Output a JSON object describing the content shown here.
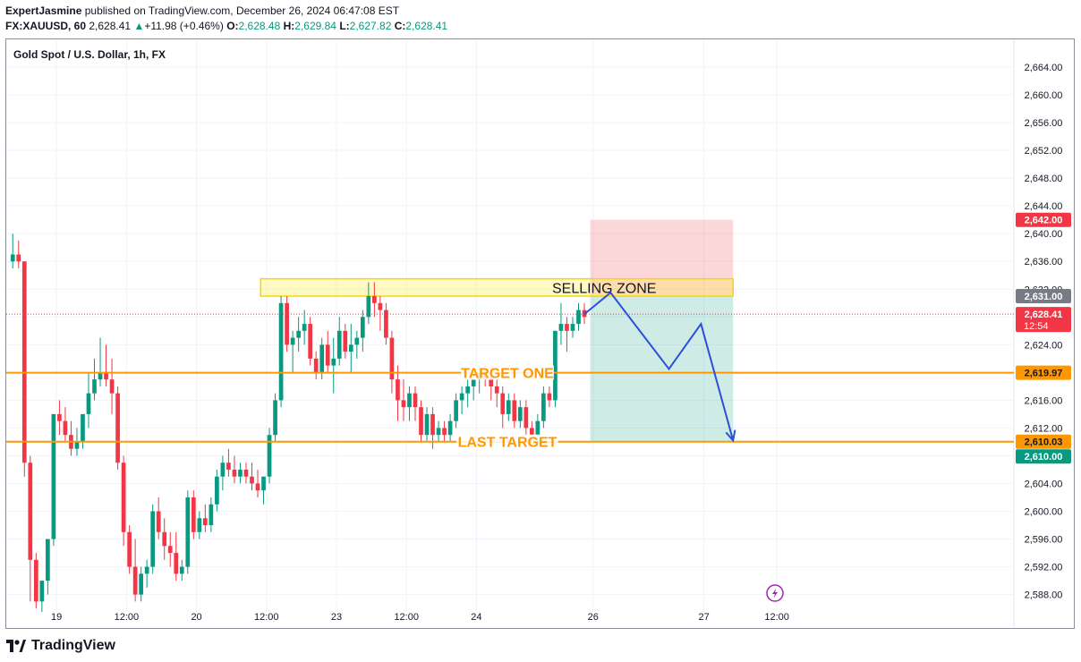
{
  "header": {
    "author": "ExpertJasmine",
    "published_text": "published on TradingView.com, December 26, 2024 06:47:08 EST",
    "symbol": "FX:XAUUSD, 60",
    "last": "2,628.41",
    "change": "+11.98 (+0.46%)",
    "open_label": "O:",
    "open": "2,628.48",
    "high_label": "H:",
    "high": "2,629.84",
    "low_label": "L:",
    "low": "2,627.82",
    "close_label": "C:",
    "close": "2,628.41"
  },
  "footer": {
    "brand": "TradingView"
  },
  "colors": {
    "up": "#089981",
    "down": "#f23645",
    "orange": "#ff9800",
    "projection": "#2b4fd6"
  },
  "chart_data": {
    "type": "candlestick",
    "title": "Gold Spot / U.S. Dollar, 1h, FX",
    "ylim": [
      2585.5,
      2668
    ],
    "yticks": [
      2588,
      2592,
      2596,
      2600,
      2604,
      2608,
      2612,
      2616,
      2620,
      2624,
      2628,
      2632,
      2636,
      2640,
      2644,
      2648,
      2652,
      2656,
      2660,
      2664
    ],
    "ytick_labels": [
      "2,588.00",
      "2,592.00",
      "2,596.00",
      "2,600.00",
      "2,604.00",
      "2,608.00",
      "2,612.00",
      "2,616.00",
      "2,620.00",
      "2,624.00",
      "2,628.00",
      "2,632.00",
      "2,636.00",
      "2,640.00",
      "2,644.00",
      "2,648.00",
      "2,652.00",
      "2,656.00",
      "2,660.00",
      "2,664.00"
    ],
    "xlim": [
      0,
      168
    ],
    "xticks": [
      {
        "x": 8,
        "label": "19"
      },
      {
        "x": 20,
        "label": "12:00"
      },
      {
        "x": 32,
        "label": "20"
      },
      {
        "x": 44,
        "label": "12:00"
      },
      {
        "x": 56,
        "label": "23"
      },
      {
        "x": 68,
        "label": "12:00"
      },
      {
        "x": 80,
        "label": "24"
      },
      {
        "x": 100,
        "label": "26"
      },
      {
        "x": 119,
        "label": "27"
      },
      {
        "x": 131.5,
        "label": "12:00"
      }
    ],
    "candles": [
      [
        2636,
        2640,
        2635,
        2637
      ],
      [
        2637,
        2639,
        2635,
        2636
      ],
      [
        2636,
        2636,
        2605,
        2607
      ],
      [
        2607,
        2608,
        2587,
        2593
      ],
      [
        2593,
        2594,
        2586,
        2587
      ],
      [
        2587,
        2590,
        2585.5,
        2590
      ],
      [
        2590,
        2596,
        2588,
        2596
      ],
      [
        2596,
        2614,
        2595,
        2614
      ],
      [
        2614,
        2616,
        2611,
        2613
      ],
      [
        2613,
        2615,
        2610,
        2611
      ],
      [
        2611,
        2613,
        2608,
        2609
      ],
      [
        2609,
        2612,
        2608,
        2610
      ],
      [
        2610,
        2614,
        2609,
        2614
      ],
      [
        2614,
        2620,
        2612,
        2617
      ],
      [
        2617,
        2622,
        2616,
        2619
      ],
      [
        2619,
        2625,
        2618,
        2620
      ],
      [
        2620,
        2624,
        2618,
        2619
      ],
      [
        2619,
        2622,
        2614,
        2617
      ],
      [
        2617,
        2618,
        2606,
        2607
      ],
      [
        2607,
        2608,
        2595,
        2597
      ],
      [
        2597,
        2598,
        2591,
        2592
      ],
      [
        2592,
        2596,
        2587,
        2588
      ],
      [
        2588,
        2592,
        2587,
        2591
      ],
      [
        2591,
        2593,
        2589,
        2592
      ],
      [
        2592,
        2601,
        2591,
        2600
      ],
      [
        2600,
        2602,
        2596,
        2597
      ],
      [
        2597,
        2599,
        2593,
        2595
      ],
      [
        2595,
        2597,
        2592,
        2594
      ],
      [
        2594,
        2597,
        2590,
        2591
      ],
      [
        2591,
        2593,
        2590,
        2592
      ],
      [
        2592,
        2603,
        2591,
        2602
      ],
      [
        2602,
        2603,
        2596,
        2597
      ],
      [
        2597,
        2600,
        2596,
        2599
      ],
      [
        2599,
        2601,
        2597,
        2598
      ],
      [
        2598,
        2602,
        2597,
        2601
      ],
      [
        2601,
        2606,
        2600,
        2605
      ],
      [
        2605,
        2608,
        2603,
        2607
      ],
      [
        2607,
        2609,
        2605,
        2606
      ],
      [
        2606,
        2608,
        2604,
        2605
      ],
      [
        2605,
        2607,
        2604,
        2606
      ],
      [
        2606,
        2607,
        2604,
        2605
      ],
      [
        2605,
        2607,
        2603,
        2604
      ],
      [
        2604,
        2606,
        2602,
        2603
      ],
      [
        2603,
        2605,
        2601,
        2605
      ],
      [
        2605,
        2612,
        2604,
        2611
      ],
      [
        2611,
        2617,
        2610,
        2616
      ],
      [
        2616,
        2631,
        2615,
        2630
      ],
      [
        2630,
        2631,
        2623,
        2624
      ],
      [
        2624,
        2626,
        2620,
        2625
      ],
      [
        2625,
        2628,
        2623,
        2626
      ],
      [
        2626,
        2629,
        2624,
        2627
      ],
      [
        2627,
        2628,
        2621,
        2622
      ],
      [
        2622,
        2623,
        2619,
        2620
      ],
      [
        2620,
        2625,
        2619,
        2624
      ],
      [
        2624,
        2626,
        2620,
        2621
      ],
      [
        2621,
        2625,
        2617,
        2622
      ],
      [
        2622,
        2628,
        2621,
        2626
      ],
      [
        2626,
        2627,
        2622,
        2623
      ],
      [
        2623,
        2627,
        2620,
        2624
      ],
      [
        2624,
        2626,
        2622,
        2625
      ],
      [
        2625,
        2629,
        2623,
        2628
      ],
      [
        2628,
        2633,
        2627,
        2631
      ],
      [
        2631,
        2633,
        2628,
        2630
      ],
      [
        2630,
        2631,
        2626,
        2629
      ],
      [
        2629,
        2630,
        2624,
        2625
      ],
      [
        2625,
        2626,
        2617,
        2619
      ],
      [
        2619,
        2621,
        2613,
        2616
      ],
      [
        2616,
        2619,
        2613,
        2615
      ],
      [
        2615,
        2618,
        2613,
        2617
      ],
      [
        2617,
        2618,
        2613,
        2615
      ],
      [
        2615,
        2616,
        2610,
        2611
      ],
      [
        2611,
        2615,
        2610,
        2614
      ],
      [
        2614,
        2615,
        2609,
        2611
      ],
      [
        2611,
        2613,
        2610,
        2612
      ],
      [
        2612,
        2613,
        2610,
        2611
      ],
      [
        2611,
        2614,
        2610,
        2613
      ],
      [
        2613,
        2617,
        2612,
        2616
      ],
      [
        2616,
        2618,
        2614,
        2617
      ],
      [
        2617,
        2619,
        2615,
        2618
      ],
      [
        2618,
        2620,
        2616,
        2619
      ],
      [
        2619,
        2621,
        2617,
        2620
      ],
      [
        2620,
        2621,
        2618,
        2619
      ],
      [
        2619,
        2621,
        2616,
        2618
      ],
      [
        2618,
        2619,
        2615,
        2617
      ],
      [
        2617,
        2618,
        2612,
        2614
      ],
      [
        2614,
        2617,
        2613,
        2616
      ],
      [
        2616,
        2617,
        2612,
        2613
      ],
      [
        2613,
        2616,
        2612,
        2615
      ],
      [
        2615,
        2616,
        2611,
        2612
      ],
      [
        2612,
        2613,
        2610,
        2611
      ],
      [
        2611,
        2614,
        2610,
        2613
      ],
      [
        2613,
        2618,
        2612,
        2617
      ],
      [
        2617,
        2618,
        2615,
        2616
      ],
      [
        2616,
        2626,
        2615,
        2626
      ],
      [
        2626,
        2630,
        2624,
        2627
      ],
      [
        2627,
        2628,
        2623,
        2626
      ],
      [
        2626,
        2628,
        2625,
        2627
      ],
      [
        2627,
        2630,
        2626,
        2629
      ],
      [
        2629,
        2630,
        2627,
        2628
      ]
    ],
    "current_price": 2628.41,
    "selling_zone": {
      "label": "SELLING ZONE",
      "x": [
        43,
        124
      ],
      "y": [
        2631,
        2633.5
      ]
    },
    "risk_box": {
      "x": [
        99.5,
        124
      ],
      "y": [
        2631,
        2642
      ]
    },
    "reward_box": {
      "x": [
        99.5,
        124
      ],
      "y": [
        2610.03,
        2631
      ]
    },
    "levels": [
      {
        "label": "TARGET ONE",
        "y": 2619.97
      },
      {
        "label": "LAST TARGET",
        "y": 2610.03
      }
    ],
    "projection_path": [
      {
        "x": 98.5,
        "y": 2628.41
      },
      {
        "x": 103,
        "y": 2631.5
      },
      {
        "x": 113,
        "y": 2620.5
      },
      {
        "x": 118.5,
        "y": 2627
      },
      {
        "x": 124,
        "y": 2610.2
      }
    ],
    "price_labels": [
      {
        "text": "2,642.00",
        "y": 2642.0,
        "bg": "#f23645",
        "fg": "#ffffff"
      },
      {
        "text": "2,631.00",
        "y": 2631.0,
        "bg": "#787b86",
        "fg": "#ffffff"
      },
      {
        "text": "2,628.41",
        "sub": "12:54",
        "y": 2628.41,
        "bg": "#f23645",
        "fg": "#ffffff"
      },
      {
        "text": "2,619.97",
        "y": 2619.97,
        "bg": "#ff9800",
        "fg": "#131722"
      },
      {
        "text": "2,610.03",
        "y": 2610.03,
        "bg": "#ff9800",
        "fg": "#131722"
      },
      {
        "text": "2,610.00",
        "y": 2607.9,
        "bg": "#089981",
        "fg": "#ffffff"
      }
    ]
  }
}
